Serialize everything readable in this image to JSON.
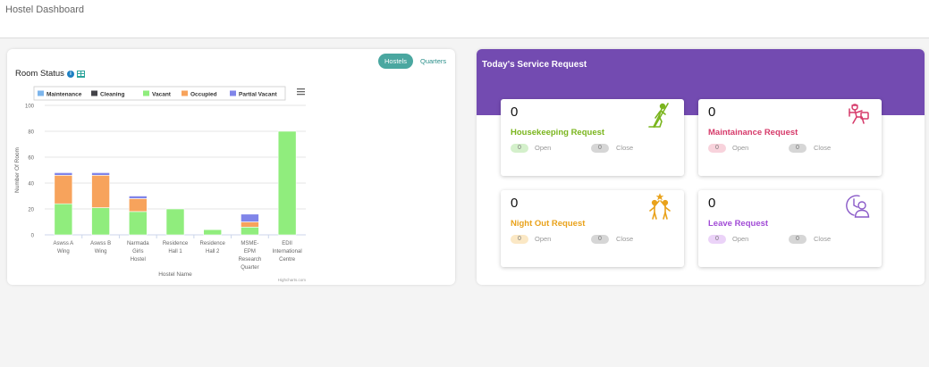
{
  "header": {
    "title": "Hostel Dashboard"
  },
  "room_status": {
    "title": "Room Status",
    "info_icon": "info-icon",
    "table_icon": "table-icon",
    "toggle": {
      "active": "Hostels",
      "inactive": "Quarters"
    },
    "credit": "Highcharts.com",
    "menu_icon": "hamburger-icon"
  },
  "chart_data": {
    "type": "bar",
    "stacked": true,
    "title": "",
    "xlabel": "Hostel Name",
    "ylabel": "Number Of Room",
    "ylim": [
      0,
      100
    ],
    "yticks": [
      0,
      20,
      40,
      60,
      80,
      100
    ],
    "grid": true,
    "legend_placement": "top-left",
    "categories": [
      [
        "Aswss A",
        "Wing"
      ],
      [
        "Aswss B",
        "Wing"
      ],
      [
        "Narmada",
        "Girls",
        "Hostel"
      ],
      [
        "Residence",
        "Hall 1"
      ],
      [
        "Residence",
        "Hall 2"
      ],
      [
        "MSME-",
        "EPM",
        "Research",
        "Quarter"
      ],
      [
        "EDII",
        "International",
        "Centre"
      ]
    ],
    "series": [
      {
        "name": "Maintenance",
        "color": "#7cb5ec",
        "values": [
          0,
          0,
          0,
          0,
          0,
          0,
          0
        ]
      },
      {
        "name": "Cleaning",
        "color": "#434348",
        "values": [
          0,
          0,
          0,
          0,
          0,
          0,
          0
        ]
      },
      {
        "name": "Vacant",
        "color": "#90ed7d",
        "values": [
          24,
          21,
          18,
          20,
          4,
          6,
          80
        ]
      },
      {
        "name": "Occupied",
        "color": "#f7a35c",
        "values": [
          22,
          25,
          10,
          0,
          0,
          4,
          0
        ]
      },
      {
        "name": "Partial Vacant",
        "color": "#8085e9",
        "values": [
          2,
          2,
          2,
          0,
          0,
          6,
          0
        ]
      }
    ]
  },
  "service": {
    "title": "Today's Service Request",
    "cards": [
      {
        "count": "0",
        "name": "Housekeeping Request",
        "color": "#7ab51d",
        "open_value": "0",
        "open_label": "Open",
        "open_bg": "#d4f0cb",
        "close_value": "0",
        "close_label": "Close",
        "icon": "housekeeping-icon"
      },
      {
        "count": "0",
        "name": "Maintainance Request",
        "color": "#d63a6a",
        "open_value": "0",
        "open_label": "Open",
        "open_bg": "#f8d3dc",
        "close_value": "0",
        "close_label": "Close",
        "icon": "repair-worker-icon"
      },
      {
        "count": "0",
        "name": "Night Out Request",
        "color": "#e9a21b",
        "open_value": "0",
        "open_label": "Open",
        "open_bg": "#fbe8c5",
        "close_value": "0",
        "close_label": "Close",
        "icon": "night-out-icon"
      },
      {
        "count": "0",
        "name": "Leave Request",
        "color": "#a14bd6",
        "open_value": "0",
        "open_label": "Open",
        "open_bg": "#ebd3f8",
        "close_value": "0",
        "close_label": "Close",
        "icon": "user-clock-icon"
      }
    ]
  }
}
